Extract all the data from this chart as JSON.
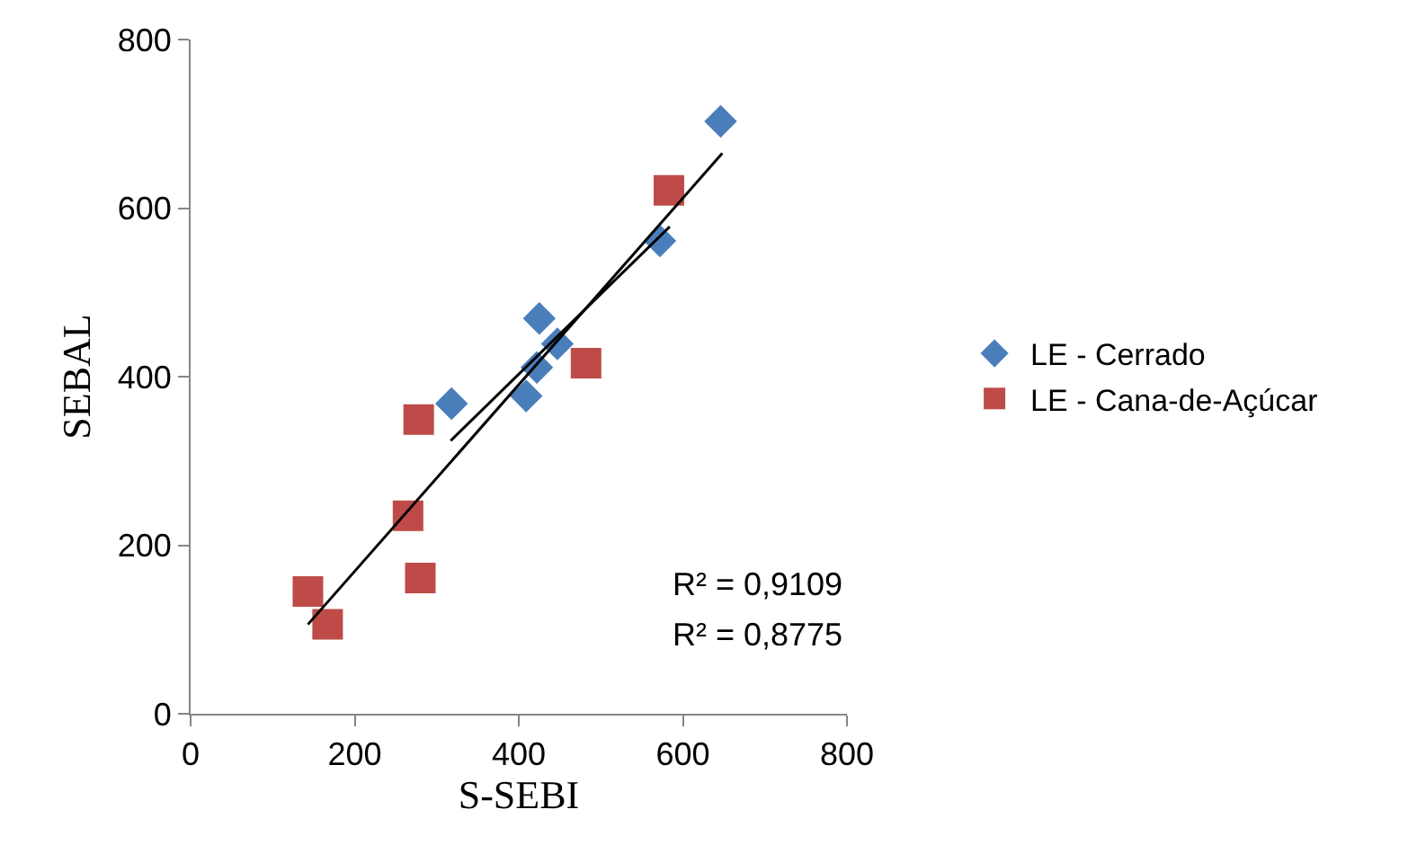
{
  "chart_data": {
    "type": "scatter",
    "xlabel": "S-SEBI",
    "ylabel": "SEBAL",
    "xlim": [
      0,
      800
    ],
    "xticks": [
      0,
      200,
      400,
      600,
      800
    ],
    "ylim": [
      0,
      800
    ],
    "yticks": [
      0,
      200,
      400,
      600,
      800
    ],
    "legend": "right",
    "series": [
      {
        "name": "LE - Cerrado",
        "color": "#4a7ebb",
        "marker": "diamond",
        "x": [
          646,
          572,
          425,
          447,
          422,
          409,
          318
        ],
        "values": [
          703,
          561,
          469,
          439,
          411,
          377,
          368
        ]
      },
      {
        "name": "LE - Cana-de-Açúcar",
        "color": "#be4b48",
        "marker": "square",
        "x": [
          583,
          482,
          278,
          265,
          280,
          143,
          167
        ],
        "values": [
          621,
          416,
          349,
          235,
          161,
          145,
          106
        ]
      },
      {
        "type": "line",
        "color": "#000000",
        "marker": "none",
        "x": [
          317,
          584
        ],
        "values": [
          324,
          578
        ]
      },
      {
        "type": "line",
        "color": "#000000",
        "marker": "none",
        "x": [
          143,
          648
        ],
        "values": [
          106,
          665
        ]
      }
    ],
    "annotations": [
      "R² = 0,9109",
      "R² = 0,8775"
    ]
  }
}
